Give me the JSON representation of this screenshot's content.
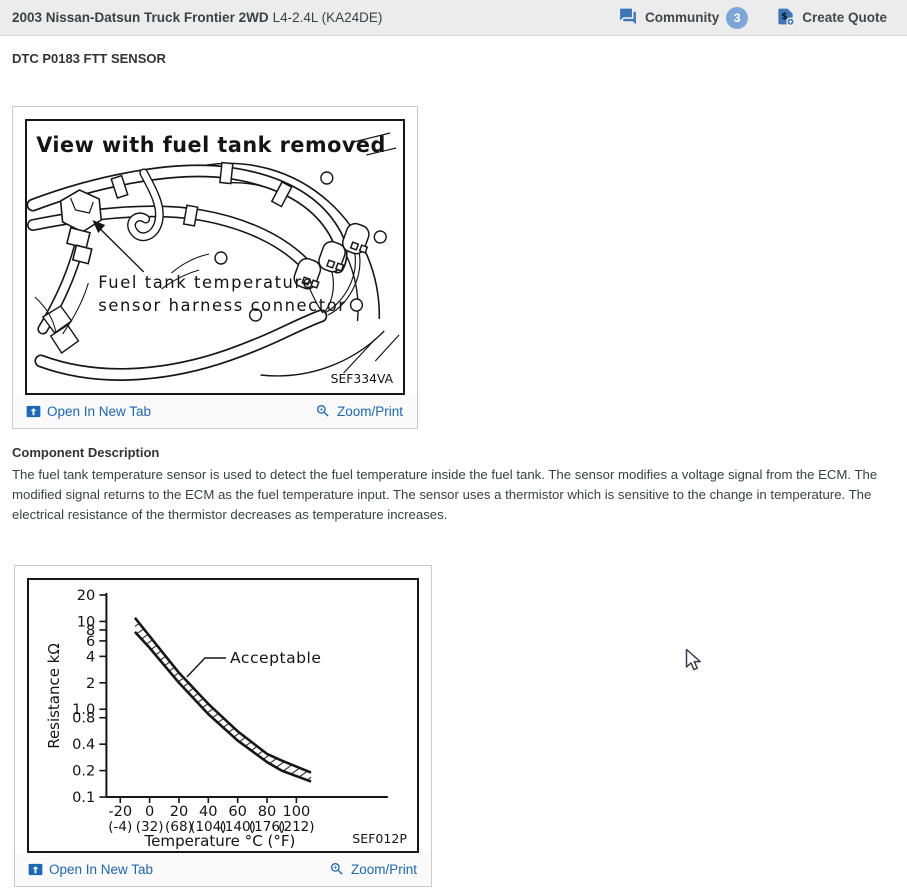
{
  "header": {
    "title_bold": "2003 Nissan-Datsun Truck Frontier 2WD",
    "title_rest": "L4-2.4L (KA24DE)",
    "community_label": "Community",
    "community_count": "3",
    "create_quote_label": "Create Quote"
  },
  "page": {
    "heading": "DTC P0183 FTT SENSOR"
  },
  "figure1": {
    "title": "View with fuel tank removed",
    "label_line1": "Fuel tank temperature",
    "label_line2": "sensor harness connector",
    "ref_code": "SEF334VA",
    "open_link": "Open In New Tab",
    "zoom_link": "Zoom/Print"
  },
  "description": {
    "heading": "Component Description",
    "body": "The fuel tank temperature sensor is used to detect the fuel temperature inside the fuel tank. The sensor modifies a voltage signal from the ECM. The modified signal returns to the ECM as the fuel temperature input. The sensor uses a thermistor which is sensitive to the change in temperature. The electrical resistance of the thermistor decreases as temperature increases."
  },
  "figure2": {
    "ref_code": "SEF012P",
    "open_link": "Open In New Tab",
    "zoom_link": "Zoom/Print"
  },
  "chart_data": {
    "type": "area",
    "title": "",
    "xlabel": "Temperature °C (°F)",
    "ylabel": "Resistance kΩ",
    "y_scale": "log",
    "ylim": [
      0.1,
      20
    ],
    "xlim": [
      -30,
      130
    ],
    "grid": false,
    "x_ticks_c": [
      "-20",
      "0",
      "20",
      "40",
      "60",
      "80",
      "100"
    ],
    "x_ticks_f": [
      "(-4)",
      "(32)",
      "(68)",
      "(104)",
      "(140)",
      "(176)",
      "(212)"
    ],
    "y_ticks": [
      "20",
      "10",
      "8",
      "6",
      "4",
      "2",
      "1.0",
      "0.8",
      "0.4",
      "0.2",
      "0.1"
    ],
    "band_label": "Acceptable",
    "series": [
      {
        "name": "acceptable_upper_limit_kohm",
        "x": [
          -10,
          0,
          20,
          40,
          60,
          80,
          90,
          110
        ],
        "values": [
          11,
          6.8,
          2.6,
          1.15,
          0.56,
          0.31,
          0.26,
          0.19
        ]
      },
      {
        "name": "acceptable_lower_limit_kohm",
        "x": [
          -10,
          0,
          20,
          40,
          60,
          80,
          90,
          110
        ],
        "values": [
          7.6,
          5.0,
          2.0,
          0.88,
          0.44,
          0.25,
          0.2,
          0.15
        ]
      }
    ]
  },
  "colors": {
    "link_blue": "#1b67b9",
    "header_icon_blue": "#3b76bb",
    "badge_blue": "#7ba6d7",
    "ink": "#161616",
    "header_bg": "#ececec"
  }
}
